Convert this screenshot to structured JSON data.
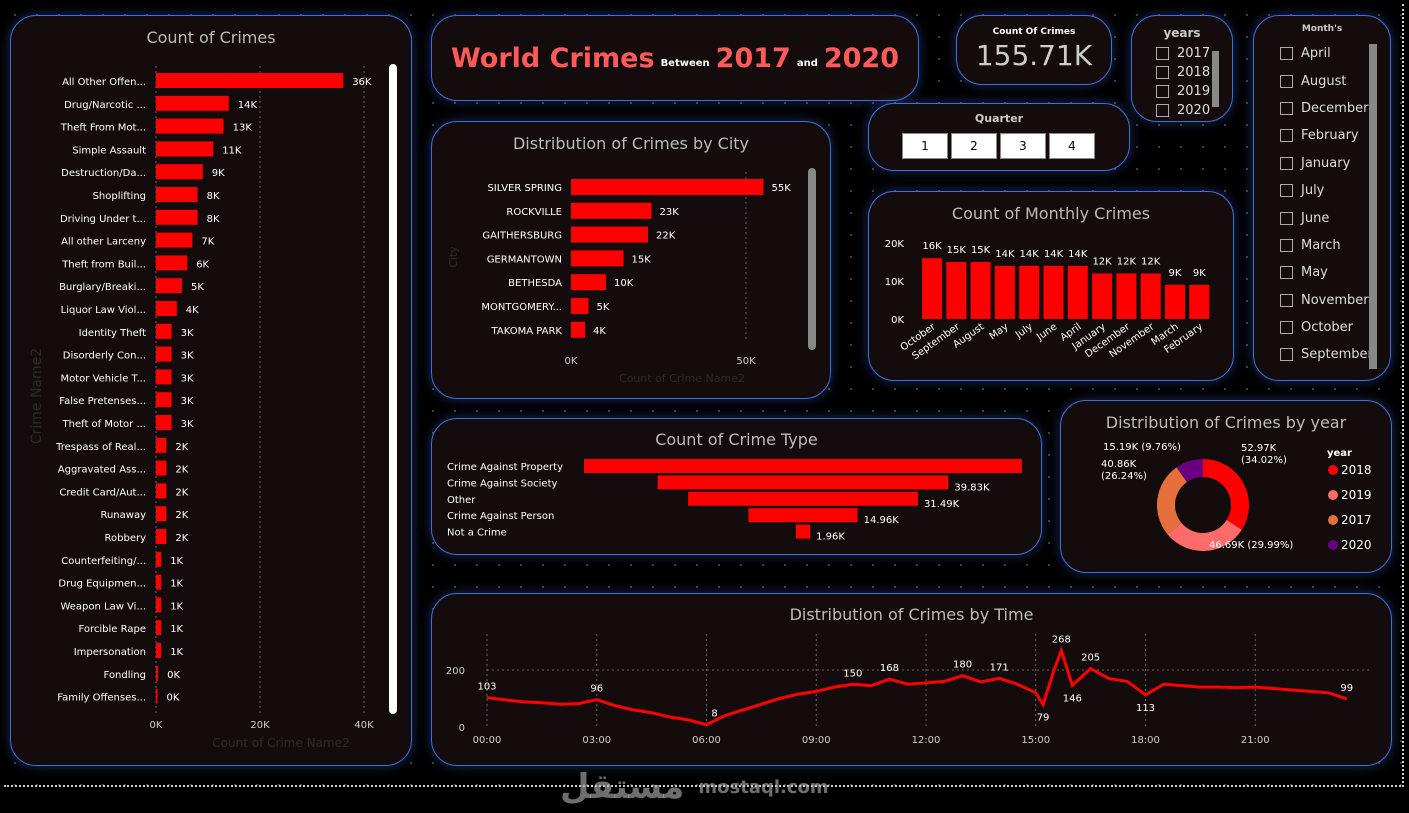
{
  "title": {
    "main": "World Crimes",
    "between": "Between",
    "y1": "2017",
    "and": "and",
    "y2": "2020"
  },
  "kpi": {
    "label": "Count Of Crimes",
    "value": "155.71K"
  },
  "years_slicer": {
    "title": "years",
    "items": [
      "2017",
      "2018",
      "2019",
      "2020"
    ]
  },
  "quarter_slicer": {
    "title": "Quarter",
    "items": [
      "1",
      "2",
      "3",
      "4"
    ]
  },
  "months_slicer": {
    "title": "Month's",
    "items": [
      "April",
      "August",
      "December",
      "February",
      "January",
      "July",
      "June",
      "March",
      "May",
      "November",
      "October",
      "September"
    ]
  },
  "colors": {
    "bar": "#ff0000",
    "panel_border": "#3f6fd8",
    "title_red": "#ff5a5a"
  },
  "chart_data": [
    {
      "type": "bar",
      "orientation": "horizontal",
      "title": "Count of Crimes",
      "xlabel": "Count of Crime Name2",
      "ylabel": "Crime Name2",
      "xlim": [
        0,
        40000
      ],
      "xticks": [
        "0K",
        "20K",
        "40K"
      ],
      "categories": [
        "All Other Offen...",
        "Drug/Narcotic ...",
        "Theft From Mot...",
        "Simple Assault",
        "Destruction/Da...",
        "Shoplifting",
        "Driving Under t...",
        "All other Larceny",
        "Theft from Buil...",
        "Burglary/Breaki...",
        "Liquor Law Viol...",
        "Identity Theft",
        "Disorderly Con...",
        "Motor Vehicle T...",
        "False Pretenses...",
        "Theft of Motor ...",
        "Trespass of Real...",
        "Aggravated Ass...",
        "Credit Card/Aut...",
        "Runaway",
        "Robbery",
        "Counterfeiting/...",
        "Drug Equipmen...",
        "Weapon Law Vi...",
        "Forcible Rape",
        "Impersonation",
        "Fondling",
        "Family Offenses..."
      ],
      "values": [
        36000,
        14000,
        13000,
        11000,
        9000,
        8000,
        8000,
        7000,
        6000,
        5000,
        4000,
        3000,
        3000,
        3000,
        3000,
        3000,
        2000,
        2000,
        2000,
        2000,
        2000,
        1000,
        1000,
        1000,
        1000,
        1000,
        400,
        300
      ],
      "labels": [
        "36K",
        "14K",
        "13K",
        "11K",
        "9K",
        "8K",
        "8K",
        "7K",
        "6K",
        "5K",
        "4K",
        "3K",
        "3K",
        "3K",
        "3K",
        "3K",
        "2K",
        "2K",
        "2K",
        "2K",
        "2K",
        "1K",
        "1K",
        "1K",
        "1K",
        "1K",
        "0K",
        "0K"
      ]
    },
    {
      "type": "bar",
      "orientation": "horizontal",
      "title": "Distribution of Crimes by City",
      "xlabel": "Count of Crime Name2",
      "ylabel": "City",
      "xlim": [
        0,
        60000
      ],
      "xticks": [
        "0K",
        "50K"
      ],
      "categories": [
        "SILVER SPRING",
        "ROCKVILLE",
        "GAITHERSBURG",
        "GERMANTOWN",
        "BETHESDA",
        "MONTGOMERY...",
        "TAKOMA PARK"
      ],
      "values": [
        55000,
        23000,
        22000,
        15000,
        10000,
        5000,
        4000
      ],
      "labels": [
        "55K",
        "23K",
        "22K",
        "15K",
        "10K",
        "5K",
        "4K"
      ]
    },
    {
      "type": "bar",
      "title": "Count of Monthly Crimes",
      "ylim": [
        0,
        20000
      ],
      "yticks": [
        "0K",
        "10K",
        "20K"
      ],
      "categories": [
        "October",
        "September",
        "August",
        "May",
        "July",
        "June",
        "April",
        "January",
        "December",
        "November",
        "March",
        "February"
      ],
      "values": [
        16000,
        15000,
        15000,
        14000,
        14000,
        14000,
        14000,
        12000,
        12000,
        12000,
        9000,
        9000
      ],
      "labels": [
        "16K",
        "15K",
        "15K",
        "14K",
        "14K",
        "14K",
        "14K",
        "12K",
        "12K",
        "12K",
        "9K",
        "9K"
      ]
    },
    {
      "type": "bar",
      "orientation": "horizontal-centered",
      "title": "Count of Crime Type",
      "categories": [
        "Crime Against Property",
        "Crime Against Society",
        "Other",
        "Crime Against Person",
        "Not a Crime"
      ],
      "values": [
        60000,
        39830,
        31490,
        14960,
        1960
      ],
      "labels": [
        "",
        "39.83K",
        "31.49K",
        "14.96K",
        "1.96K"
      ]
    },
    {
      "type": "pie",
      "donut": true,
      "title": "Distribution of Crimes by year",
      "legend_title": "year",
      "legend_position": "right",
      "slices": [
        {
          "name": "2018",
          "value": 52970,
          "label": "52.97K (34.02%)",
          "color": "#ff0000"
        },
        {
          "name": "2019",
          "value": 46690,
          "label": "46.69K (29.99%)",
          "color": "#ff6a6a"
        },
        {
          "name": "2017",
          "value": 40860,
          "label": "40.86K (26.24%)",
          "color": "#e5703c"
        },
        {
          "name": "2020",
          "value": 15190,
          "label": "15.19K (9.76%)",
          "color": "#6a0080"
        }
      ]
    },
    {
      "type": "line",
      "title": "Distribution of Crimes by Time",
      "ylim": [
        0,
        280
      ],
      "yticks": [
        "0",
        "200"
      ],
      "xticks": [
        "00:00",
        "03:00",
        "06:00",
        "09:00",
        "12:00",
        "15:00",
        "18:00",
        "21:00"
      ],
      "x": [
        0,
        0.5,
        1,
        1.5,
        2,
        2.5,
        3,
        3.5,
        4,
        4.5,
        5,
        5.5,
        6,
        6.5,
        7,
        7.5,
        8,
        8.5,
        9,
        9.5,
        10,
        10.5,
        11,
        11.5,
        12,
        12.5,
        13,
        13.5,
        14,
        14.5,
        15,
        15.2,
        15.5,
        15.7,
        16,
        16.5,
        17,
        17.5,
        18,
        18.5,
        19,
        19.5,
        20,
        20.5,
        21,
        21.5,
        22,
        22.5,
        23,
        23.5
      ],
      "y": [
        103,
        95,
        88,
        85,
        80,
        82,
        96,
        75,
        60,
        50,
        35,
        25,
        8,
        40,
        60,
        80,
        100,
        115,
        125,
        140,
        150,
        145,
        168,
        150,
        155,
        160,
        180,
        158,
        171,
        150,
        120,
        79,
        200,
        268,
        146,
        205,
        170,
        160,
        113,
        150,
        145,
        140,
        140,
        138,
        140,
        135,
        130,
        125,
        120,
        99
      ],
      "annotations": [
        {
          "x": 0,
          "label": "103"
        },
        {
          "x": 3,
          "label": "96"
        },
        {
          "x": 6,
          "label": "8"
        },
        {
          "x": 10,
          "label": "150"
        },
        {
          "x": 11,
          "label": "168"
        },
        {
          "x": 13,
          "label": "180"
        },
        {
          "x": 14,
          "label": "171"
        },
        {
          "x": 15.2,
          "label": "79"
        },
        {
          "x": 15.7,
          "label": "268"
        },
        {
          "x": 16,
          "label": "146"
        },
        {
          "x": 16.5,
          "label": "205"
        },
        {
          "x": 18,
          "label": "113"
        },
        {
          "x": 23.5,
          "label": "99"
        }
      ]
    }
  ],
  "watermark": {
    "arabic": "مستقل",
    "latin": "mostaql.com"
  }
}
